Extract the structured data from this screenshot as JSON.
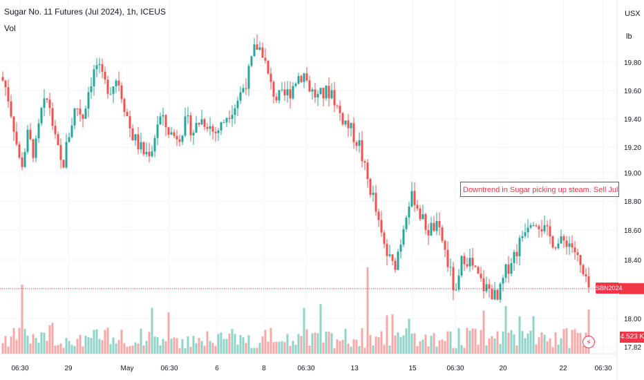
{
  "header": {
    "title": "Sugar No. 11 Futures (Jul 2024), 1h, ICEUS",
    "vol_label": "Vol",
    "currency": "USX",
    "unit": "lb"
  },
  "annotation": {
    "text": "Downtrend in Sugar picking up steam. Sell July Sugar market on"
  },
  "badges": {
    "symbol": "SBN2024",
    "volume": "4.523 K",
    "bolt_icon": "lightning-icon"
  },
  "colors": {
    "up": "#26a69a",
    "down": "#ef5350",
    "vol_up": "#8fd3c9",
    "vol_down": "#f7a9a7",
    "grid": "#f0f3fa",
    "current_price_line": "#f23645"
  },
  "chart_data": {
    "type": "candlestick",
    "title": "Sugar No. 11 Futures (Jul 2024), 1h, ICEUS",
    "y_ticks": [
      "19.80",
      "19.60",
      "19.40",
      "19.20",
      "19.00",
      "18.80",
      "18.60",
      "18.40",
      "18.20",
      "18.00",
      "17.82"
    ],
    "ylim": [
      17.8,
      20.0
    ],
    "x_ticks": [
      "06:30",
      "29",
      "May",
      "06:30",
      "6",
      "8",
      "06:30",
      "13",
      "15",
      "06:30",
      "20",
      "22",
      "06:30"
    ],
    "current_price": 18.21,
    "grid": true,
    "close_path": [
      [
        0,
        19.72
      ],
      [
        10,
        19.6
      ],
      [
        20,
        19.35
      ],
      [
        30,
        19.05
      ],
      [
        40,
        19.28
      ],
      [
        50,
        19.15
      ],
      [
        60,
        19.45
      ],
      [
        70,
        19.55
      ],
      [
        80,
        19.25
      ],
      [
        90,
        19.05
      ],
      [
        100,
        19.3
      ],
      [
        110,
        19.5
      ],
      [
        120,
        19.42
      ],
      [
        130,
        19.65
      ],
      [
        140,
        19.78
      ],
      [
        150,
        19.65
      ],
      [
        160,
        19.62
      ],
      [
        170,
        19.7
      ],
      [
        180,
        19.5
      ],
      [
        190,
        19.3
      ],
      [
        200,
        19.22
      ],
      [
        210,
        19.15
      ],
      [
        220,
        19.2
      ],
      [
        230,
        19.42
      ],
      [
        240,
        19.35
      ],
      [
        250,
        19.28
      ],
      [
        260,
        19.3
      ],
      [
        270,
        19.38
      ],
      [
        280,
        19.32
      ],
      [
        290,
        19.4
      ],
      [
        300,
        19.38
      ],
      [
        310,
        19.3
      ],
      [
        320,
        19.35
      ],
      [
        330,
        19.45
      ],
      [
        340,
        19.5
      ],
      [
        350,
        19.6
      ],
      [
        360,
        19.72
      ],
      [
        370,
        19.92
      ],
      [
        380,
        19.88
      ],
      [
        390,
        19.65
      ],
      [
        400,
        19.55
      ],
      [
        410,
        19.55
      ],
      [
        420,
        19.6
      ],
      [
        430,
        19.7
      ],
      [
        440,
        19.72
      ],
      [
        450,
        19.6
      ],
      [
        460,
        19.55
      ],
      [
        470,
        19.58
      ],
      [
        480,
        19.6
      ],
      [
        490,
        19.45
      ],
      [
        500,
        19.38
      ],
      [
        510,
        19.3
      ],
      [
        520,
        19.22
      ],
      [
        530,
        19.0
      ],
      [
        540,
        18.85
      ],
      [
        550,
        18.6
      ],
      [
        560,
        18.45
      ],
      [
        570,
        18.35
      ],
      [
        580,
        18.55
      ],
      [
        590,
        18.82
      ],
      [
        600,
        18.85
      ],
      [
        610,
        18.7
      ],
      [
        620,
        18.62
      ],
      [
        630,
        18.65
      ],
      [
        640,
        18.55
      ],
      [
        650,
        18.35
      ],
      [
        660,
        18.15
      ],
      [
        670,
        18.45
      ],
      [
        680,
        18.4
      ],
      [
        690,
        18.3
      ],
      [
        700,
        18.22
      ],
      [
        710,
        18.2
      ],
      [
        720,
        18.12
      ],
      [
        730,
        18.3
      ],
      [
        740,
        18.42
      ],
      [
        750,
        18.5
      ],
      [
        760,
        18.65
      ],
      [
        770,
        18.72
      ],
      [
        780,
        18.68
      ],
      [
        790,
        18.6
      ],
      [
        800,
        18.55
      ],
      [
        810,
        18.52
      ],
      [
        820,
        18.55
      ],
      [
        830,
        18.5
      ],
      [
        840,
        18.35
      ],
      [
        850,
        18.21
      ]
    ]
  }
}
